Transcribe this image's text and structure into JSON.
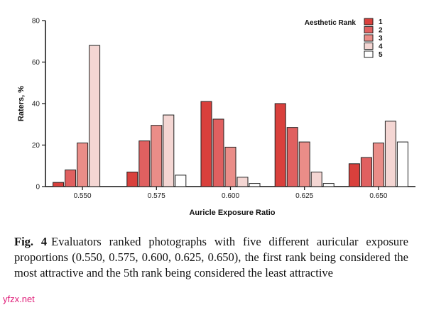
{
  "chart_data": {
    "type": "bar",
    "categories": [
      "0.550",
      "0.575",
      "0.600",
      "0.625",
      "0.650"
    ],
    "series": [
      {
        "name": "1",
        "values": [
          2,
          7,
          41,
          40,
          11
        ],
        "color": "#d9403c"
      },
      {
        "name": "2",
        "values": [
          8,
          22,
          32.5,
          28.5,
          14
        ],
        "color": "#e06060"
      },
      {
        "name": "3",
        "values": [
          21,
          29.5,
          19,
          21.5,
          21
        ],
        "color": "#ea8d88"
      },
      {
        "name": "4",
        "values": [
          68,
          34.5,
          4.5,
          7,
          31.5
        ],
        "color": "#f4d6d3"
      },
      {
        "name": "5",
        "values": [
          0,
          5.5,
          1.5,
          1.5,
          21.5
        ],
        "color": "#ffffff"
      }
    ],
    "legend_title": "Aesthetic Rank",
    "legend_position": "top-right",
    "xlabel": "Auricle Exposure Ratio",
    "ylabel": "Raters, %",
    "ylim": [
      0,
      80
    ],
    "yticks": [
      0,
      20,
      40,
      60,
      80
    ],
    "grid": false
  },
  "caption": {
    "label": "Fig. 4",
    "text": "Evaluators ranked photographs with five different auricular exposure proportions (0.550, 0.575, 0.600, 0.625, 0.650), the first rank being considered the most attractive and the 5th rank being considered the least attractive"
  },
  "watermark": "yfzx.net"
}
